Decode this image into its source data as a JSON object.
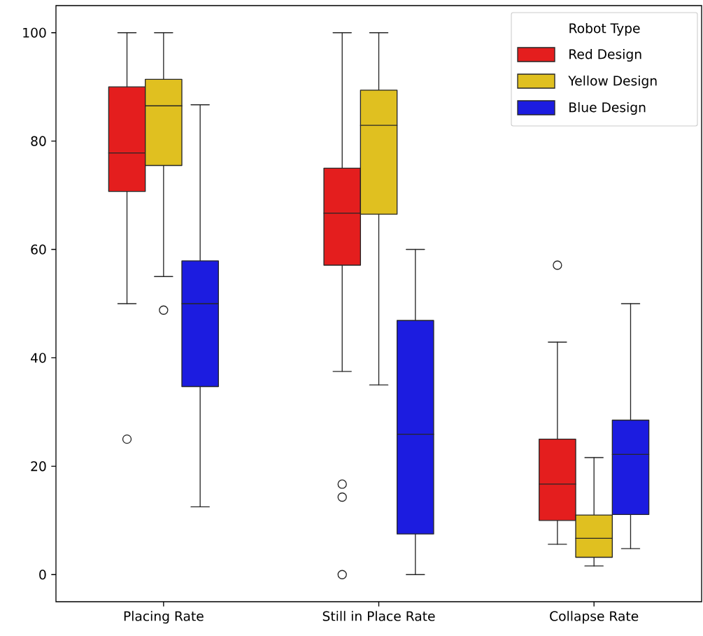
{
  "chart_data": {
    "type": "box",
    "categories": [
      "Placing Rate",
      "Still in Place Rate",
      "Collapse Rate"
    ],
    "legend_title": "Robot Type",
    "legend": "top right",
    "ylim": [
      -5,
      105
    ],
    "yticks": [
      0,
      20,
      40,
      60,
      80,
      100
    ],
    "series": [
      {
        "name": "Red Design",
        "color": "#e41e1e",
        "boxes": [
          {
            "low": 50,
            "q1": 70.7,
            "median": 77.8,
            "q3": 90,
            "high": 100,
            "outliers": [
              25
            ]
          },
          {
            "low": 37.5,
            "q1": 57.1,
            "median": 66.7,
            "q3": 75,
            "high": 100,
            "outliers": [
              16.7,
              14.3,
              0
            ]
          },
          {
            "low": 5.6,
            "q1": 10,
            "median": 16.7,
            "q3": 25,
            "high": 42.9,
            "outliers": [
              57.1
            ]
          }
        ]
      },
      {
        "name": "Yellow Design",
        "color": "#e0c020",
        "boxes": [
          {
            "low": 55,
            "q1": 75.5,
            "median": 86.5,
            "q3": 91.4,
            "high": 100,
            "outliers": [
              48.8
            ]
          },
          {
            "low": 35,
            "q1": 66.5,
            "median": 82.9,
            "q3": 89.4,
            "high": 100
          },
          {
            "low": 1.6,
            "q1": 3.2,
            "median": 6.7,
            "q3": 11,
            "high": 21.6
          }
        ]
      },
      {
        "name": "Blue Design",
        "color": "#1c1ce0",
        "boxes": [
          {
            "low": 12.5,
            "q1": 34.7,
            "median": 50,
            "q3": 57.9,
            "high": 86.7
          },
          {
            "low": 0,
            "q1": 7.5,
            "median": 25.9,
            "q3": 46.9,
            "high": 60
          },
          {
            "low": 4.8,
            "q1": 11.1,
            "median": 22.2,
            "q3": 28.5,
            "high": 50
          }
        ]
      }
    ]
  }
}
